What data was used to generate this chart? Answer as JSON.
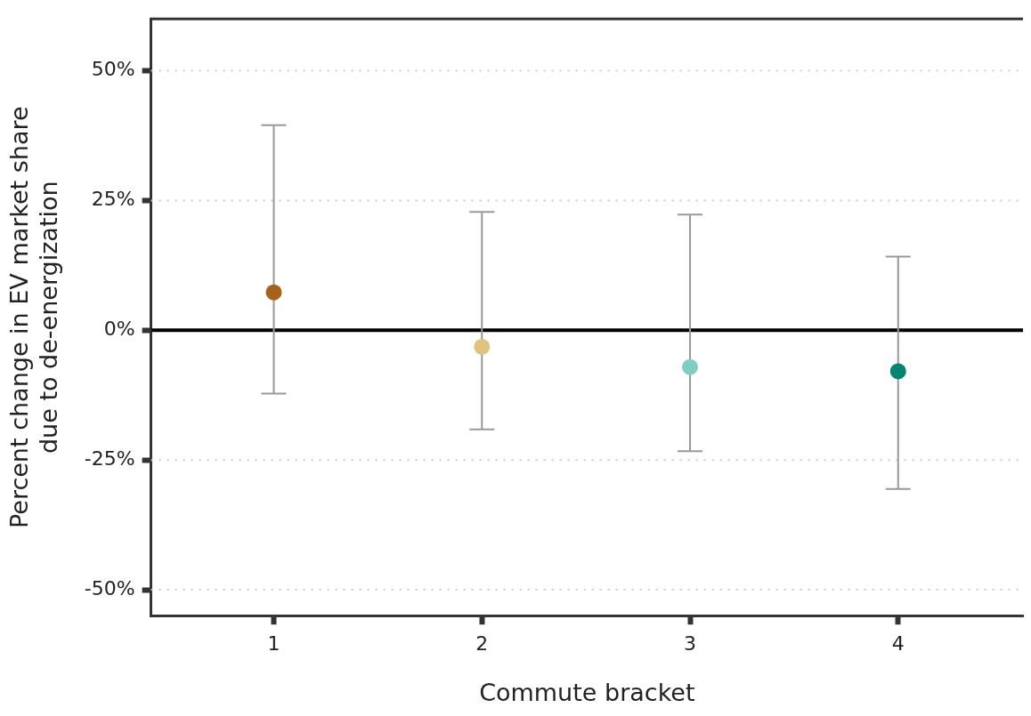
{
  "chart_data": {
    "type": "scatter",
    "xlabel": "Commute bracket",
    "ylabel": "Percent change in EV market share\ndue to de-energization",
    "x": [
      1,
      2,
      3,
      4
    ],
    "values": [
      7.3,
      -3.2,
      -7.1,
      -7.9
    ],
    "colors": [
      "#a6611a",
      "#dfc27d",
      "#80cdc1",
      "#018571"
    ],
    "errors": [
      [
        -12.2,
        39.5
      ],
      [
        -19.1,
        22.8
      ],
      [
        -23.3,
        22.3
      ],
      [
        -30.6,
        14.2
      ]
    ],
    "xlim": [
      0.41,
      4.6
    ],
    "xticks": [
      1,
      2,
      3,
      4
    ],
    "ylim": [
      -55,
      60
    ],
    "yticks": [
      {
        "value": -50,
        "label": "-50%"
      },
      {
        "value": -25,
        "label": "-25%"
      },
      {
        "value": 0,
        "label": "0%"
      },
      {
        "value": 25,
        "label": "25%"
      },
      {
        "value": 50,
        "label": "50%"
      }
    ],
    "grid": "y",
    "legend": false,
    "marker": "circle",
    "ref_lines": [
      {
        "axis": "y",
        "value": 0,
        "color": "#000000",
        "line_style": "solid"
      }
    ]
  }
}
